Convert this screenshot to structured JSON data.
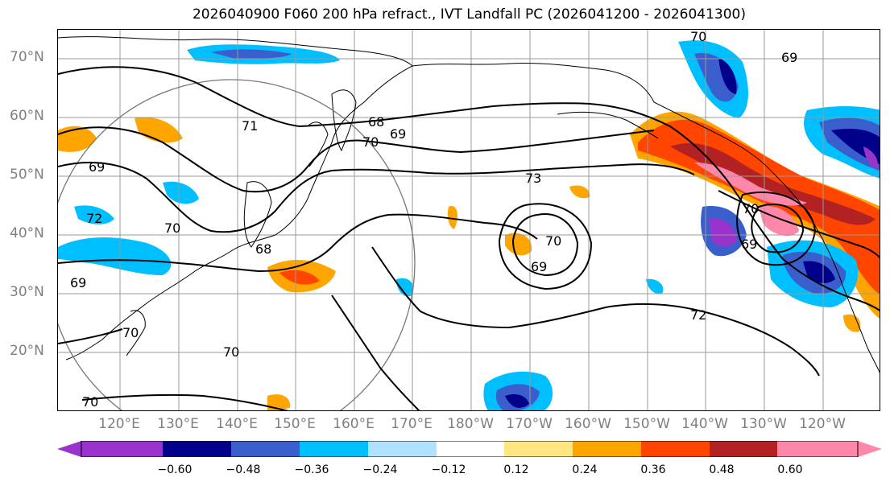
{
  "title": "2026040900 F060 200 hPa refract., IVT Landfall PC (2026041200 - 2026041300)",
  "lat_labels": [
    "70°N",
    "60°N",
    "50°N",
    "40°N",
    "30°N",
    "20°N"
  ],
  "lon_labels": [
    "120°E",
    "130°E",
    "140°E",
    "150°E",
    "160°E",
    "170°E",
    "180°W",
    "170°W",
    "160°W",
    "150°W",
    "140°W",
    "130°W",
    "120°W"
  ],
  "contour_labels": [
    "70",
    "69",
    "68",
    "69",
    "70",
    "71",
    "69",
    "72",
    "70",
    "68",
    "73",
    "69",
    "70",
    "72",
    "70",
    "69",
    "69",
    "70",
    "70",
    "70"
  ],
  "colorbar": {
    "ticks": [
      "−0.60",
      "−0.48",
      "−0.36",
      "−0.24",
      "−0.12",
      "0.12",
      "0.24",
      "0.36",
      "0.48",
      "0.60"
    ],
    "colors": [
      "#9933cc",
      "#00008b",
      "#3a5fcd",
      "#00bfff",
      "#b0e2ff",
      "#ffffff",
      "#ffe680",
      "#ffa500",
      "#ff4500",
      "#b22222",
      "#ff88aa"
    ]
  }
}
